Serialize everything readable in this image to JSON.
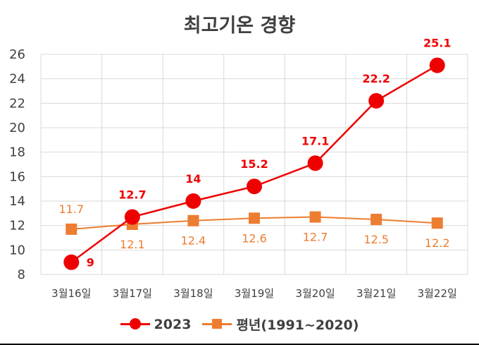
{
  "chart_data": {
    "type": "line",
    "title": "최고기온 경향",
    "categories": [
      "3월16일",
      "3월17일",
      "3월18일",
      "3월19일",
      "3월20일",
      "3월21일",
      "3월22일"
    ],
    "ylim": [
      8,
      26
    ],
    "yticks": [
      8,
      10,
      12,
      14,
      16,
      18,
      20,
      22,
      24,
      26
    ],
    "grid": true,
    "legend_position": "bottom",
    "series": [
      {
        "name": "2023",
        "values": [
          9,
          12.7,
          14,
          15.2,
          17.1,
          22.2,
          25.1
        ],
        "labels": [
          "9",
          "12.7",
          "14",
          "15.2",
          "17.1",
          "22.2",
          "25.1"
        ],
        "color": "#ee0000",
        "marker": "circle"
      },
      {
        "name": "평년(1991~2020)",
        "values": [
          11.7,
          12.1,
          12.4,
          12.6,
          12.7,
          12.5,
          12.2
        ],
        "labels": [
          "11.7",
          "12.1",
          "12.4",
          "12.6",
          "12.7",
          "12.5",
          "12.2"
        ],
        "color": "#ed7d31",
        "marker": "square"
      }
    ]
  }
}
